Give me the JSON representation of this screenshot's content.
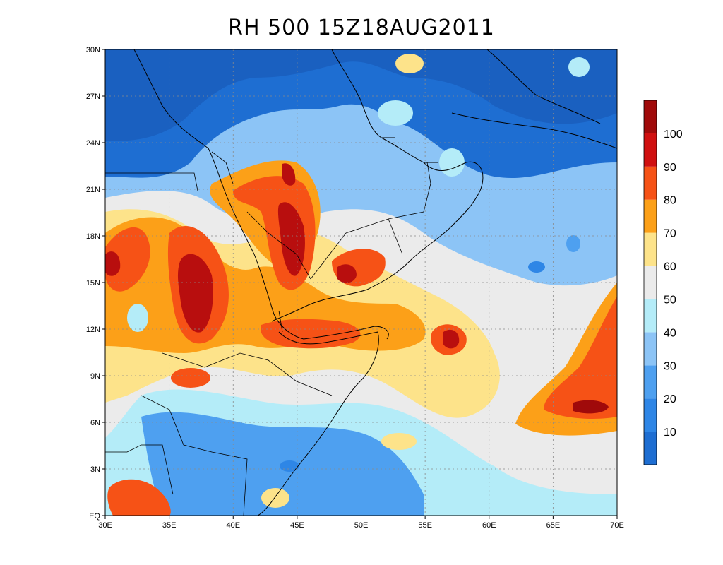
{
  "title": "RH 500 15Z18AUG2011",
  "map": {
    "lon_range": [
      30,
      70
    ],
    "lat_range": [
      0,
      30
    ],
    "lon_ticks": [
      "30E",
      "35E",
      "40E",
      "45E",
      "50E",
      "55E",
      "60E",
      "65E",
      "70E"
    ],
    "lat_ticks": [
      "EQ",
      "3N",
      "6N",
      "9N",
      "12N",
      "15N",
      "18N",
      "21N",
      "24N",
      "27N",
      "30N"
    ],
    "grid": true
  },
  "colorbar": {
    "labels": [
      "10",
      "20",
      "30",
      "40",
      "50",
      "60",
      "70",
      "80",
      "90",
      "100"
    ],
    "colors": [
      "#1e6ed2",
      "#2e86e6",
      "#4ea0f0",
      "#8cc4f6",
      "#b4ecf8",
      "#ebebeb",
      "#fde38a",
      "#fca018",
      "#f65216",
      "#d01010",
      "#a00a0a"
    ]
  },
  "fields": [
    {
      "lon": 30,
      "lat": 30,
      "lon2": 70,
      "lat2": 0,
      "rh": 40
    },
    {
      "lon": 42,
      "lat": 21,
      "r": 3.5,
      "rh": 85
    },
    {
      "lon": 44,
      "lat": 16,
      "r": 3,
      "rh": 88
    },
    {
      "lon": 37.5,
      "lat": 14,
      "r": 3.5,
      "rh": 92
    },
    {
      "lon": 31,
      "lat": 16,
      "r": 2.5,
      "rh": 82
    },
    {
      "lon": 49,
      "lat": 15.5,
      "r": 2,
      "rh": 88
    },
    {
      "lon": 57,
      "lat": 11.5,
      "r": 1.5,
      "rh": 92
    },
    {
      "lon": 68,
      "lat": 7,
      "r": 4,
      "rh": 86
    }
  ]
}
